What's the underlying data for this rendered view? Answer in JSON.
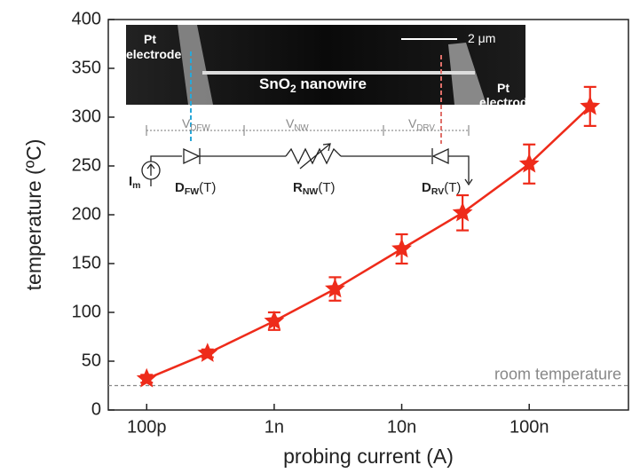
{
  "chart_data": {
    "type": "scatter",
    "x_label": "probing current (A)",
    "y_label": "temperature (ºC)",
    "log_x": true,
    "xlim": [
      5e-11,
      6e-07
    ],
    "xticks": [
      {
        "value": 1e-10,
        "label": "100p"
      },
      {
        "value": 1e-09,
        "label": "1n"
      },
      {
        "value": 1e-08,
        "label": "10n"
      },
      {
        "value": 1e-07,
        "label": "100n"
      }
    ],
    "ylim": [
      0,
      400
    ],
    "yticks": [
      0,
      50,
      100,
      150,
      200,
      250,
      300,
      350,
      400
    ],
    "x": [
      1e-10,
      3e-10,
      1e-09,
      3e-09,
      1e-08,
      3e-08,
      1e-07,
      3e-07
    ],
    "values": [
      32,
      58,
      91,
      124,
      165,
      202,
      252,
      311
    ],
    "errors": [
      4,
      4,
      9,
      12,
      15,
      18,
      20,
      20
    ],
    "color": "#ee2b1a",
    "reference_line": {
      "value": 25,
      "label": "room temperature",
      "color": "#888888"
    },
    "inset": {
      "pt_left": [
        "Pt",
        "electrode"
      ],
      "pt_right": [
        "Pt",
        "electrode"
      ],
      "scale": "2 μm",
      "nanowire": [
        "SnO",
        "2",
        " nanowire"
      ],
      "voltages": [
        [
          "V",
          "DFW"
        ],
        [
          "V",
          "NW"
        ],
        [
          "V",
          "DRV"
        ]
      ],
      "source": [
        "I",
        "m"
      ],
      "components": [
        [
          "D",
          "FW",
          "(T)"
        ],
        [
          "R",
          "NW",
          "(T)"
        ],
        [
          "D",
          "RV",
          "(T)"
        ]
      ]
    }
  }
}
